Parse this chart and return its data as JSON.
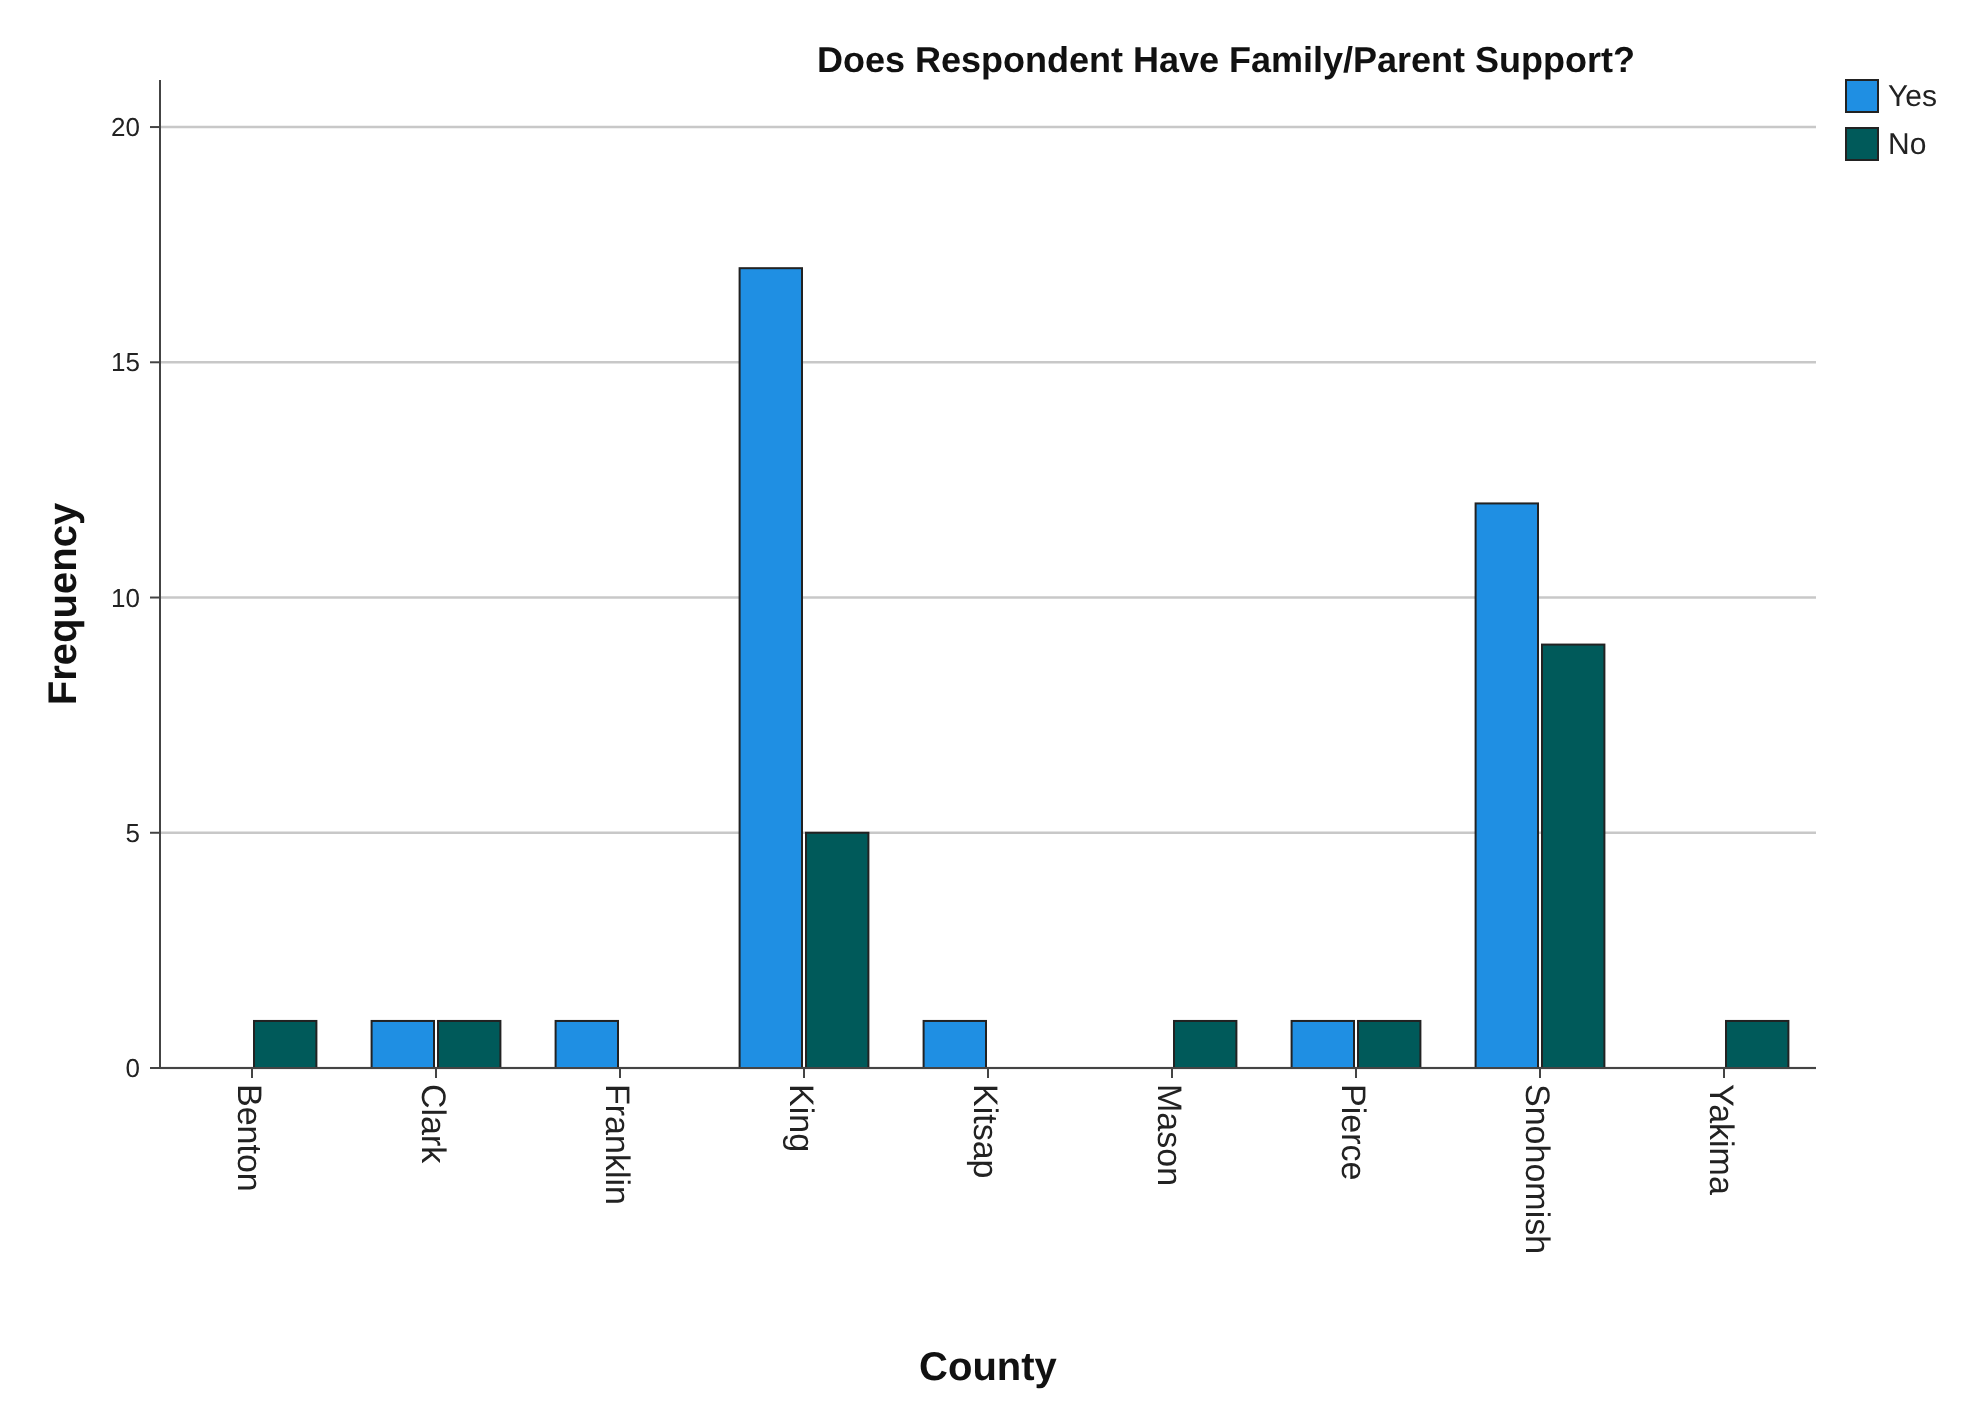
{
  "chart_data": {
    "type": "bar",
    "title": "Does Respondent Have Family/Parent Support?",
    "xlabel": "County",
    "ylabel": "Frequency",
    "categories": [
      "Benton",
      "Clark",
      "Franklin",
      "King",
      "Kitsap",
      "Mason",
      "Pierce",
      "Snohomish",
      "Yakima"
    ],
    "series": [
      {
        "name": "Yes",
        "color": "#1f8fe3",
        "values": [
          null,
          1,
          1,
          17,
          1,
          null,
          1,
          12,
          null
        ]
      },
      {
        "name": "No",
        "color": "#005a5a",
        "values": [
          1,
          1,
          null,
          5,
          null,
          1,
          1,
          9,
          1
        ]
      }
    ],
    "ylim": [
      0,
      21
    ],
    "yticks": [
      0,
      5,
      10,
      15,
      20
    ],
    "grid": "y",
    "legend": "top right"
  }
}
